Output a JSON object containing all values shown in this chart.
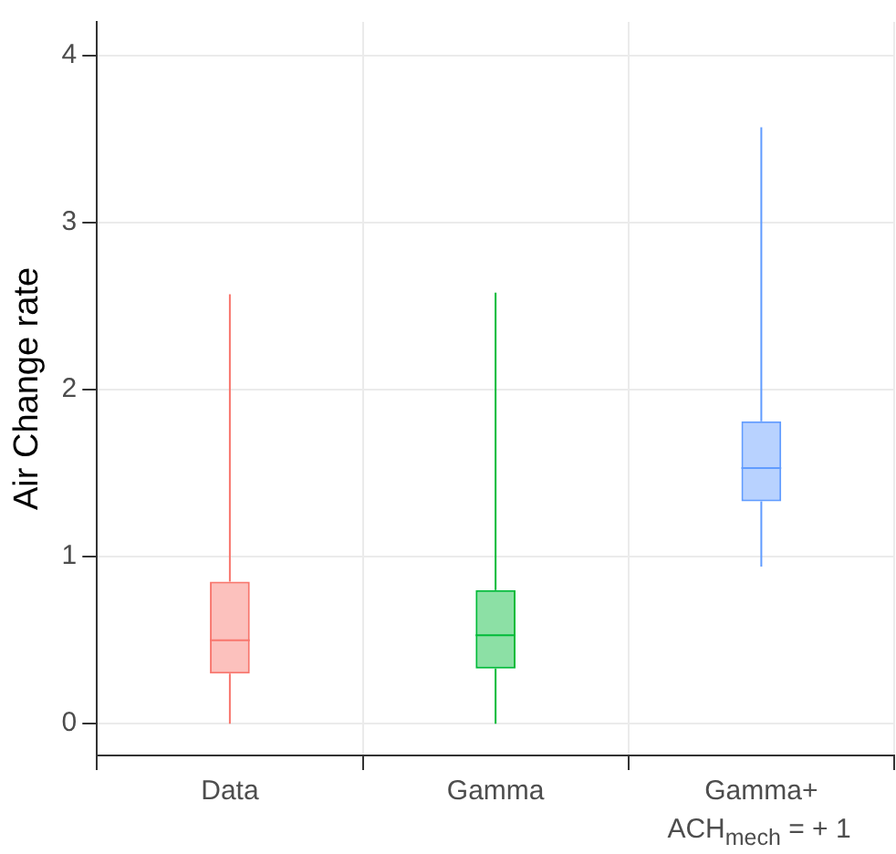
{
  "chart_data": {
    "type": "box",
    "ylabel": "Air Change rate",
    "categories": [
      "Data",
      "Gamma",
      "Gamma+"
    ],
    "colors": [
      "#f8766d",
      "#00ba38",
      "#619cff"
    ],
    "boxes": [
      {
        "low": 0,
        "q1": 0.3,
        "median": 0.5,
        "q3": 0.85,
        "high": 2.57
      },
      {
        "low": 0,
        "q1": 0.33,
        "median": 0.53,
        "q3": 0.8,
        "high": 2.58
      },
      {
        "low": 0.94,
        "q1": 1.33,
        "median": 1.53,
        "q3": 1.81,
        "high": 3.57
      }
    ],
    "ylim": [
      -0.19,
      4.2
    ],
    "yticks": [
      0,
      1,
      2,
      3,
      4
    ],
    "grid": true,
    "annotations": [
      "ACH$_{mech}$ = + 1"
    ]
  }
}
